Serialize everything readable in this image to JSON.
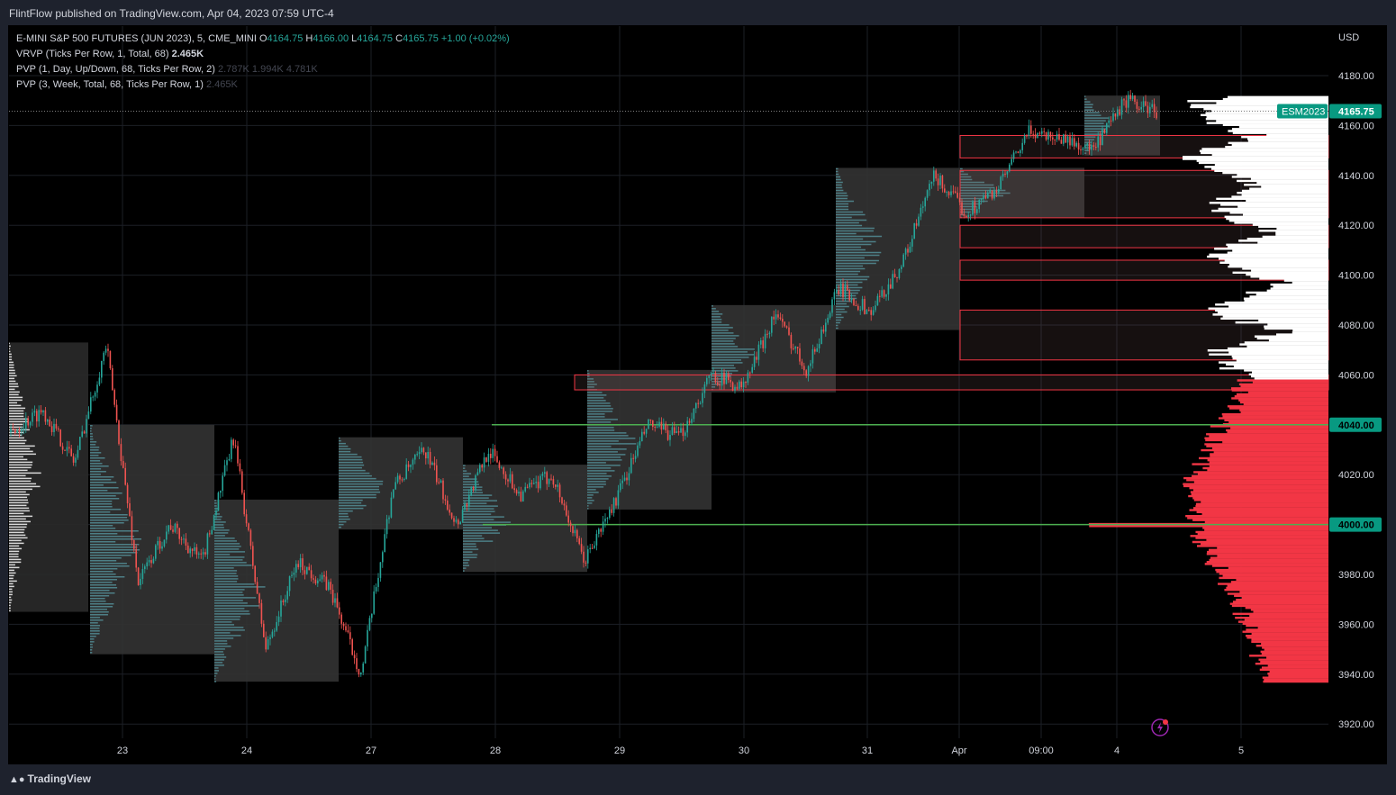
{
  "header": {
    "published": "FlintFlow published on TradingView.com, Apr 04, 2023 07:59 UTC-4"
  },
  "legend": {
    "symbol": "E-MINI S&P 500 FUTURES (JUN 2023), 5, CME_MINI",
    "ohlc_o_label": "O",
    "ohlc_o": "4164.75",
    "ohlc_h_label": "H",
    "ohlc_h": "4166.00",
    "ohlc_l_label": "L",
    "ohlc_l": "4164.75",
    "ohlc_c_label": "C",
    "ohlc_c": "4165.75",
    "change": "+1.00 (+0.02%)",
    "vrvp": "VRVP (Ticks Per Row, 1, Total, 68)",
    "vrvp_value": "2.465K",
    "pvp1": "PVP (1, Day, Up/Down, 68, Ticks Per Row, 2)",
    "pvp1_v1": "2.787K",
    "pvp1_v2": "1.994K",
    "pvp1_v3": "4.781K",
    "pvp2": "PVP (3, Week, Total, 68, Ticks Per Row, 1)",
    "pvp2_value": "2.465K"
  },
  "footer": {
    "logo_text": "TradingView"
  },
  "icons": [
    "tradingview-logo-icon",
    "lightning-icon"
  ],
  "colors": {
    "up": "#26a69a",
    "down": "#ef5350",
    "profile_red": "#f23645",
    "level_green": "#4caf50",
    "price_tag": "#089981"
  },
  "chart_data": {
    "type": "line",
    "title": "E-MINI S&P 500 FUTURES (JUN 2023), 5, CME_MINI",
    "currency": "USD",
    "ylim": [
      3914,
      4188
    ],
    "y_ticks": [
      4180,
      4160,
      4140,
      4120,
      4100,
      4080,
      4060,
      4040,
      4020,
      4000,
      3980,
      3960,
      3940,
      3920
    ],
    "x_ticks": [
      "23",
      "24",
      "27",
      "28",
      "29",
      "30",
      "31",
      "Apr",
      "09:00",
      "4",
      "5"
    ],
    "price_tag": {
      "label": "ESM2023",
      "value": 4165.75
    },
    "level_tags": [
      4040,
      4000
    ],
    "green_levels": [
      4040,
      4000
    ],
    "approx_path": [
      {
        "x": "23",
        "y": 4037
      },
      {
        "x": "23",
        "y": 4046
      },
      {
        "x": "23",
        "y": 4025
      },
      {
        "x": "23",
        "y": 4072
      },
      {
        "x": "23",
        "y": 3977
      },
      {
        "x": "23",
        "y": 4000
      },
      {
        "x": "23",
        "y": 3985
      },
      {
        "x": "24",
        "y": 4035
      },
      {
        "x": "24",
        "y": 3950
      },
      {
        "x": "24",
        "y": 3985
      },
      {
        "x": "24",
        "y": 3975
      },
      {
        "x": "24",
        "y": 3940
      },
      {
        "x": "27",
        "y": 4015
      },
      {
        "x": "27",
        "y": 4030
      },
      {
        "x": "27",
        "y": 4000
      },
      {
        "x": "27",
        "y": 4030
      },
      {
        "x": "28",
        "y": 4012
      },
      {
        "x": "28",
        "y": 4020
      },
      {
        "x": "28",
        "y": 3985
      },
      {
        "x": "29",
        "y": 4010
      },
      {
        "x": "29",
        "y": 4040
      },
      {
        "x": "29",
        "y": 4035
      },
      {
        "x": "30",
        "y": 4060
      },
      {
        "x": "30",
        "y": 4055
      },
      {
        "x": "30",
        "y": 4085
      },
      {
        "x": "30",
        "y": 4062
      },
      {
        "x": "31",
        "y": 4095
      },
      {
        "x": "31",
        "y": 4085
      },
      {
        "x": "31",
        "y": 4105
      },
      {
        "x": "31",
        "y": 4140
      },
      {
        "x": "Apr",
        "y": 4125
      },
      {
        "x": "Apr",
        "y": 4135
      },
      {
        "x": "09:00",
        "y": 4158
      },
      {
        "x": "09:00",
        "y": 4155
      },
      {
        "x": "4",
        "y": 4150
      },
      {
        "x": "4",
        "y": 4170
      },
      {
        "x": "4",
        "y": 4165.75
      }
    ]
  }
}
